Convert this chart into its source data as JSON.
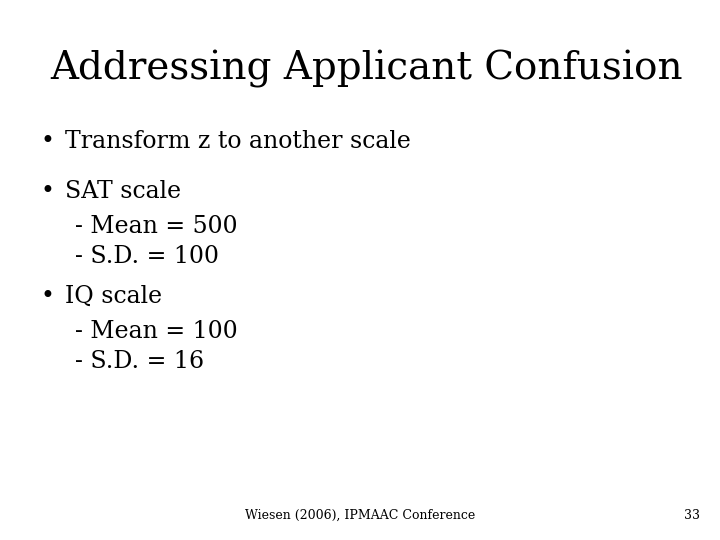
{
  "title": "Addressing Applicant Confusion",
  "bullet1": "Transform z to another scale",
  "bullet2": "SAT scale",
  "sat_sub1": "- Mean = 500",
  "sat_sub2": "- S.D. = 100",
  "bullet3": "IQ scale",
  "iq_sub1": "- Mean = 100",
  "iq_sub2": "- S.D. = 16",
  "footer": "Wiesen (2006), IPMAAC Conference",
  "page_num": "33",
  "bg_color": "#ffffff",
  "text_color": "#000000",
  "title_fontsize": 28,
  "body_fontsize": 17,
  "footer_fontsize": 9
}
